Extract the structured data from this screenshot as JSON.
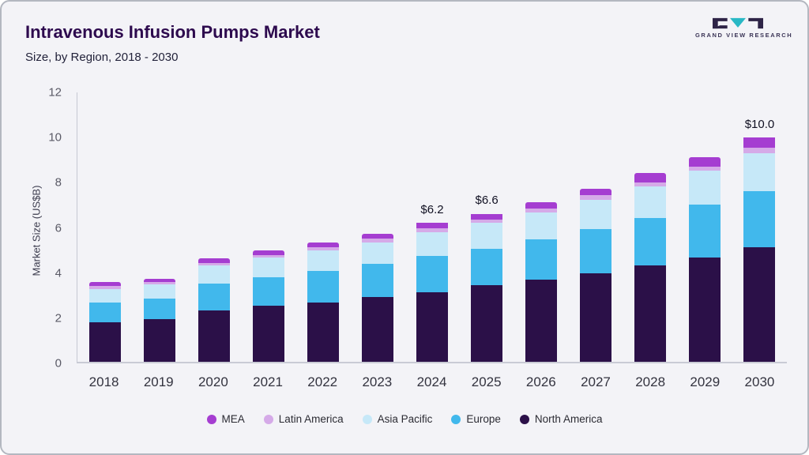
{
  "header": {
    "title": "Intravenous Infusion Pumps Market",
    "subtitle": "Size, by Region, 2018 - 2030",
    "logo_text": "GRAND VIEW RESEARCH"
  },
  "colors": {
    "logo_dark": "#2e2447",
    "logo_teal": "#29b8c5",
    "axis": "#c6c8d2"
  },
  "chart_data": {
    "type": "bar",
    "stacked": true,
    "title": "Intravenous Infusion Pumps Market Size, by Region, 2018 - 2030",
    "ylabel": "Market Size (US$B)",
    "xlabel": "",
    "ylim": [
      0,
      12
    ],
    "yticks": [
      0,
      2,
      4,
      6,
      8,
      10,
      12
    ],
    "grid": false,
    "legend_position": "bottom",
    "categories": [
      "2018",
      "2019",
      "2020",
      "2021",
      "2022",
      "2023",
      "2024",
      "2025",
      "2026",
      "2027",
      "2028",
      "2029",
      "2030"
    ],
    "series": [
      {
        "name": "North America",
        "color": "#2b1048",
        "values": [
          1.75,
          1.9,
          2.3,
          2.5,
          2.65,
          2.9,
          3.1,
          3.4,
          3.65,
          3.95,
          4.3,
          4.65,
          5.1
        ]
      },
      {
        "name": "Europe",
        "color": "#41b8ec",
        "values": [
          0.9,
          0.9,
          1.2,
          1.25,
          1.4,
          1.45,
          1.6,
          1.65,
          1.8,
          1.95,
          2.1,
          2.35,
          2.5
        ]
      },
      {
        "name": "Asia Pacific",
        "color": "#c6e8f8",
        "values": [
          0.6,
          0.65,
          0.78,
          0.88,
          0.93,
          0.98,
          1.08,
          1.13,
          1.2,
          1.33,
          1.4,
          1.5,
          1.7
        ]
      },
      {
        "name": "Latin America",
        "color": "#d5aae8",
        "values": [
          0.12,
          0.1,
          0.12,
          0.12,
          0.13,
          0.15,
          0.16,
          0.16,
          0.18,
          0.18,
          0.2,
          0.2,
          0.25
        ]
      },
      {
        "name": "MEA",
        "color": "#a53dd1",
        "values": [
          0.18,
          0.15,
          0.2,
          0.2,
          0.2,
          0.22,
          0.26,
          0.26,
          0.27,
          0.29,
          0.4,
          0.4,
          0.45
        ]
      }
    ],
    "annotations": [
      {
        "category": "2024",
        "text": "$6.2"
      },
      {
        "category": "2025",
        "text": "$6.6"
      },
      {
        "category": "2030",
        "text": "$10.0"
      }
    ],
    "legend": [
      {
        "label": "MEA",
        "color": "#a53dd1"
      },
      {
        "label": "Latin America",
        "color": "#d5aae8"
      },
      {
        "label": "Asia Pacific",
        "color": "#c6e8f8"
      },
      {
        "label": "Europe",
        "color": "#41b8ec"
      },
      {
        "label": "North America",
        "color": "#2b1048"
      }
    ]
  }
}
